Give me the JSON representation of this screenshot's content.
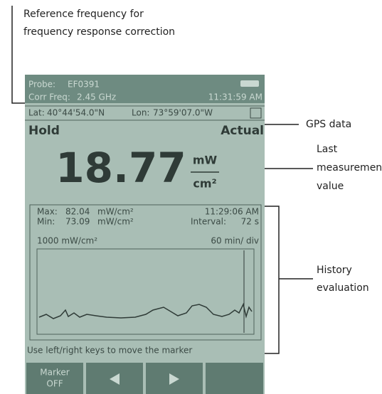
{
  "annotations": {
    "reference_frequency": [
      "Reference frequency for",
      "frequency response correction"
    ],
    "gps": "GPS data",
    "last_measurement": [
      "Last",
      "measurement",
      "value"
    ],
    "history": [
      "History",
      "evaluation"
    ]
  },
  "screen": {
    "probe_label": "Probe:",
    "probe": "EF0391",
    "corr_label": "Corr Freq:",
    "corr": "2.45 GHz",
    "time": "11:31:59 AM",
    "lat_label": "Lat:",
    "lat": "40°44'54.0\"N",
    "lon_label": "Lon:",
    "lon": "73°59'07.0\"W",
    "hold": "Hold",
    "actual": "Actual",
    "value": "18.77",
    "unit_top": "mW",
    "unit_bottom": "cm²",
    "max_label": "Max:",
    "max": "82.04",
    "max_unit": "mW/cm²",
    "max_time": "11:29:06 AM",
    "min_label": "Min:",
    "min": "73.09",
    "min_unit": "mW/cm²",
    "interval_label": "Interval:",
    "interval": "72 s",
    "scale": "1000 mW/cm²",
    "timescale": "60 min/ div",
    "hint": "Use left/right keys to move the marker",
    "buttons": [
      "Marker",
      "OFF"
    ]
  }
}
